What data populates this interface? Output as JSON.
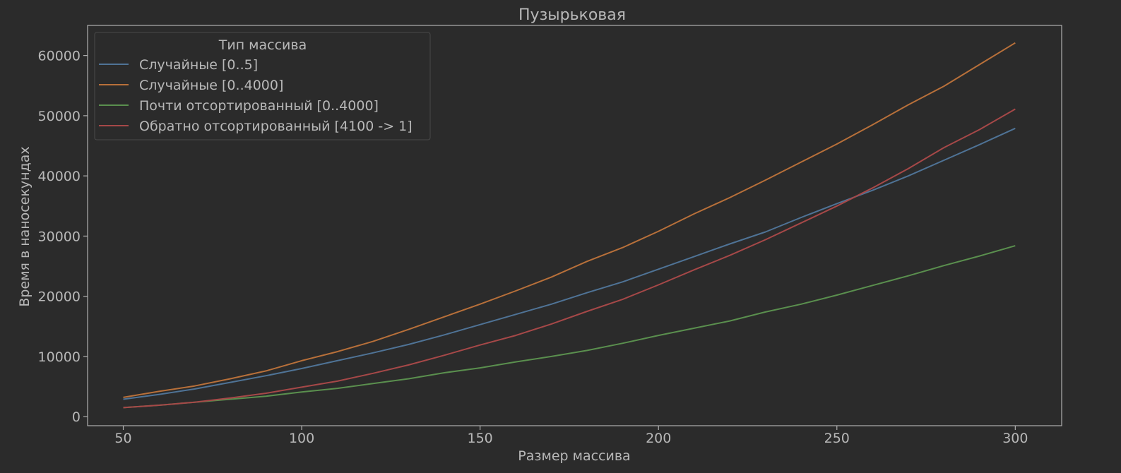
{
  "chart_data": {
    "type": "line",
    "title": "Пузырьковая",
    "xlabel": "Размер массива",
    "ylabel": "Время в наносекундах",
    "xlim": [
      40,
      313
    ],
    "ylim": [
      -1500,
      65000
    ],
    "x_ticks": [
      50,
      100,
      150,
      200,
      250,
      300
    ],
    "y_ticks": [
      0,
      10000,
      20000,
      30000,
      40000,
      50000,
      60000
    ],
    "grid": false,
    "legend": {
      "title": "Тип массива",
      "position": "top-left"
    },
    "x": [
      50,
      60,
      70,
      80,
      90,
      100,
      110,
      120,
      130,
      140,
      150,
      160,
      170,
      180,
      190,
      200,
      210,
      220,
      230,
      240,
      250,
      260,
      270,
      280,
      290,
      300
    ],
    "series": [
      {
        "name": "Случайные [0..5]",
        "color": "#4f7396",
        "values": [
          2900,
          3700,
          4600,
          5700,
          6800,
          8000,
          9300,
          10600,
          12000,
          13600,
          15300,
          17000,
          18700,
          20600,
          22400,
          24500,
          26600,
          28700,
          30700,
          33100,
          35400,
          37600,
          40000,
          42600,
          45200,
          47900
        ]
      },
      {
        "name": "Случайные [0..4000]",
        "color": "#b8703a",
        "values": [
          3200,
          4200,
          5100,
          6300,
          7600,
          9300,
          10800,
          12500,
          14500,
          16600,
          18700,
          20900,
          23200,
          25800,
          28100,
          30800,
          33700,
          36400,
          39300,
          42300,
          45300,
          48500,
          51800,
          54900,
          58500,
          62100
        ]
      },
      {
        "name": "Почти отсортированный [0..4000]",
        "color": "#5a8f4e",
        "values": [
          1500,
          1900,
          2400,
          2900,
          3400,
          4100,
          4700,
          5500,
          6300,
          7300,
          8100,
          9100,
          10000,
          11000,
          12200,
          13500,
          14700,
          15900,
          17400,
          18700,
          20200,
          21800,
          23400,
          25100,
          26700,
          28400
        ]
      },
      {
        "name": "Обратно отсортированный [4100 -> 1]",
        "color": "#a64848",
        "values": [
          1500,
          1900,
          2400,
          3100,
          3900,
          4900,
          5900,
          7200,
          8600,
          10200,
          11900,
          13500,
          15400,
          17500,
          19500,
          21900,
          24400,
          26800,
          29400,
          32200,
          35000,
          38000,
          41200,
          44700,
          47700,
          51100
        ]
      }
    ]
  }
}
